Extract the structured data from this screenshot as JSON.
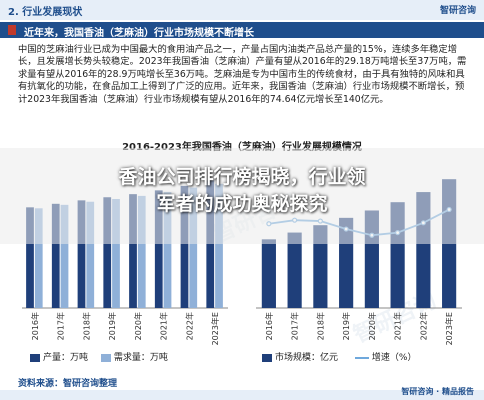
{
  "header": {
    "section_title": "2. 行业发展现状",
    "logo": "智研咨询"
  },
  "subheader": {
    "title": "近年来，我国香油（芝麻油）行业市场规模不断增长"
  },
  "body_paragraph": "中国的芝麻油行业已成为中国最大的食用油产品之一，产量占国内油类产品总产量的15%，连续多年稳定增长，且发展增长势头较稳定。2023年我国香油（芝麻油）产量有望从2016年的29.18万吨增长至37万吨，需求量有望从2016年的28.9万吨增长至36万吨。芝麻油是专为中国市生的传统食材，由于具有独特的风味和具有抗氧化的功能，在食品加工上得到了广泛的应用。近年来，我国香油（芝麻油）行业市场规模不断增长，预计2023年我国香油（芝麻油）行业市场规模有望从2016年的74.64亿元增长至140亿元。",
  "overlay": {
    "line1": "香油公司排行榜揭晓，行业领",
    "line2": "军者的成功奥秘探究"
  },
  "legend": {
    "production": "产量：万吨",
    "demand": "需求量：万吨",
    "market": "市场规模：亿元",
    "growth": "增速（%）"
  },
  "footer": {
    "source": "资料来源：智研咨询整理",
    "brand": "智研咨询 · 精品报告"
  },
  "colors": {
    "production": "#1f3f7a",
    "demand": "#8fb0d8",
    "market": "#1f3f7a",
    "growth": "#6fa8dc"
  },
  "chart_data": [
    {
      "type": "bar",
      "title": "2016-2023年我国香油（芝麻油）行业发展规模情况",
      "categories": [
        "2016年",
        "2017年",
        "2018年",
        "2019年",
        "2020年",
        "2021年",
        "2022年",
        "2023年E"
      ],
      "series": [
        {
          "name": "产量：万吨",
          "values": [
            29.18,
            30.2,
            31.2,
            32.1,
            33.0,
            34.1,
            35.4,
            37
          ]
        },
        {
          "name": "需求量：万吨",
          "values": [
            28.9,
            29.9,
            30.8,
            31.6,
            32.5,
            33.6,
            34.9,
            36
          ]
        }
      ],
      "ylim": [
        0,
        40
      ]
    },
    {
      "type": "bar",
      "categories": [
        "2016年",
        "2017年",
        "2018年",
        "2019年",
        "2020年",
        "2021年",
        "2022年",
        "2023年E"
      ],
      "series": [
        {
          "name": "市场规模：亿元",
          "values": [
            74.64,
            82,
            90,
            98,
            106,
            115,
            126,
            140
          ]
        },
        {
          "name": "增速（%）",
          "values": [
            9.5,
            9.9,
            9.8,
            8.9,
            8.2,
            8.5,
            9.6,
            11.1
          ],
          "type": "line"
        }
      ],
      "ylim": [
        0,
        150
      ]
    }
  ]
}
